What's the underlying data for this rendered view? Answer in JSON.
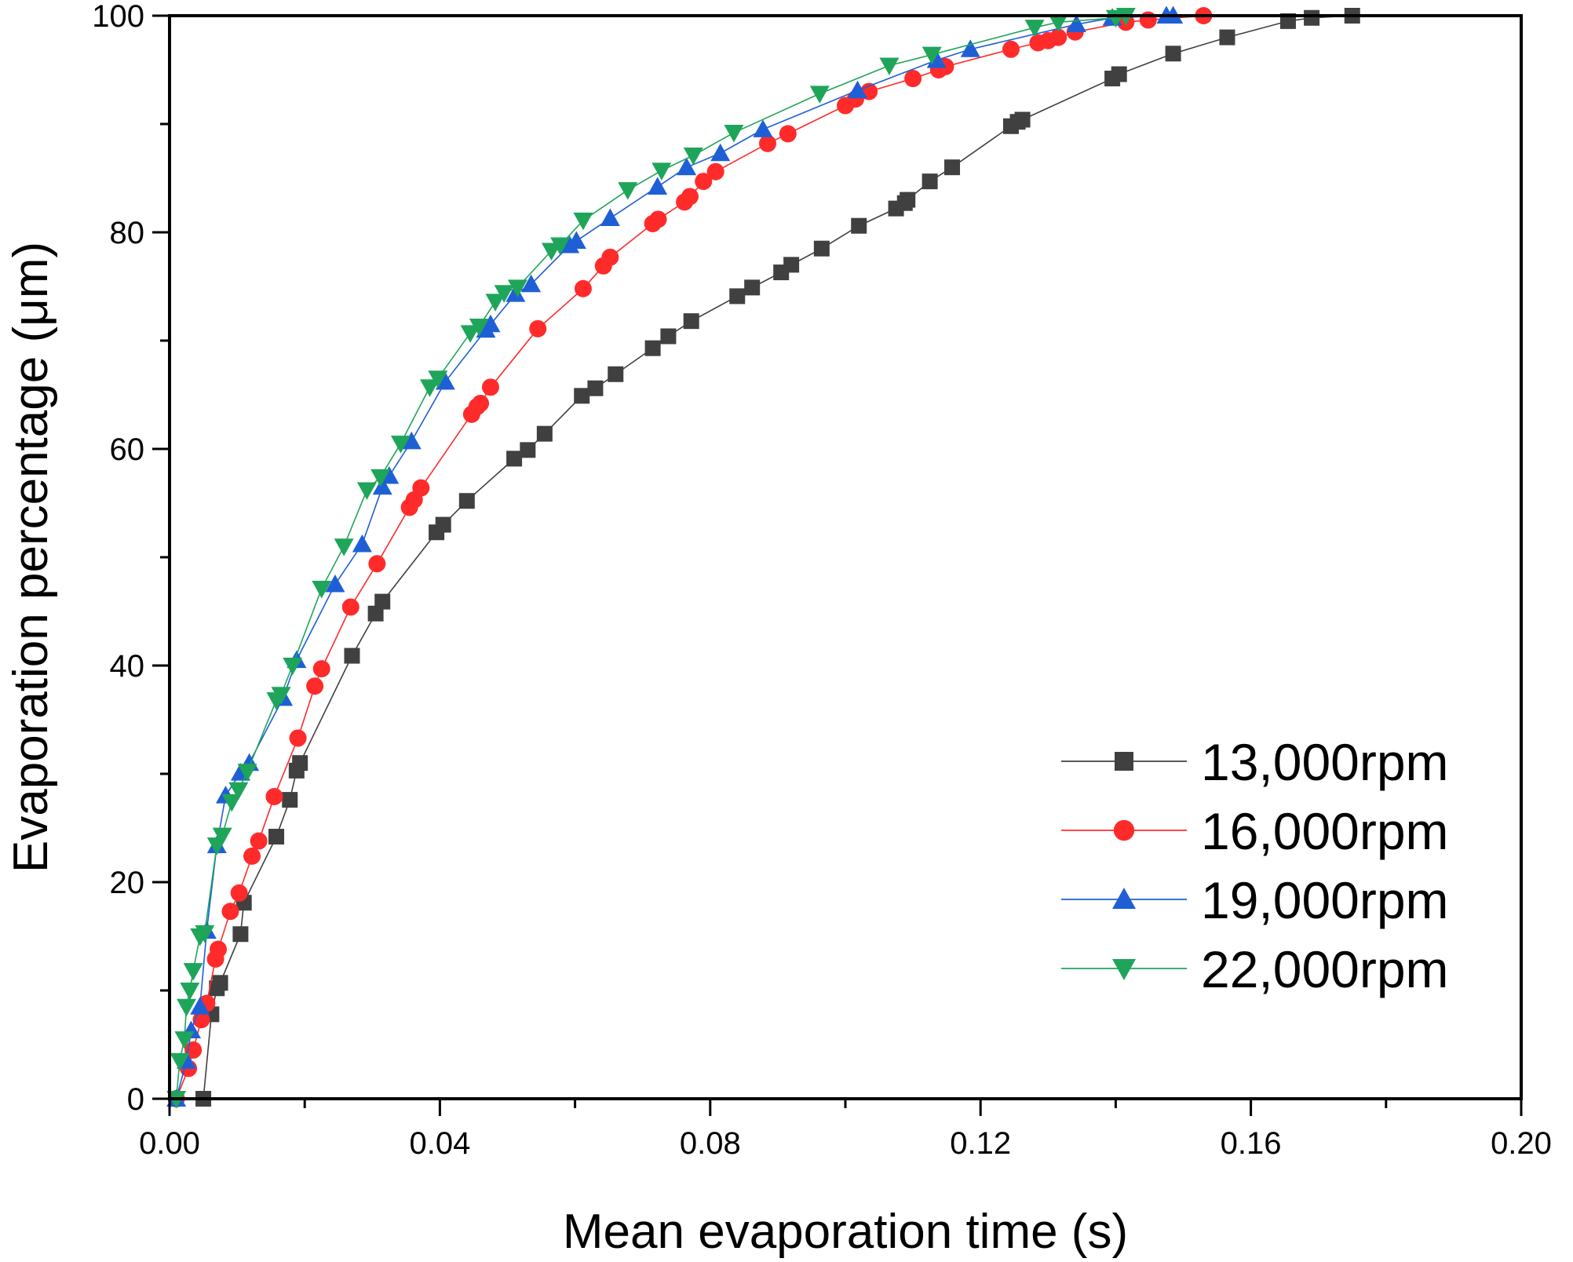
{
  "chart_data": {
    "type": "line",
    "xlabel": "Mean evaporation time (s)",
    "ylabel": "Evaporation percentage (μm)",
    "xlim": [
      0,
      0.2
    ],
    "ylim": [
      0,
      100
    ],
    "x_ticks": [
      0.0,
      0.04,
      0.08,
      0.12,
      0.16,
      0.2
    ],
    "x_tick_labels": [
      "0.00",
      "0.04",
      "0.08",
      "0.12",
      "0.16",
      "0.20"
    ],
    "y_ticks": [
      0,
      20,
      40,
      60,
      80,
      100
    ],
    "y_tick_labels": [
      "0",
      "20",
      "40",
      "60",
      "80",
      "100"
    ],
    "grid": false,
    "legend_position": "bottom-right",
    "series": [
      {
        "name": "13,000rpm",
        "color": "#404040",
        "marker": "square",
        "x": [
          0.005,
          0.0062,
          0.007,
          0.0075,
          0.0105,
          0.011,
          0.0158,
          0.0178,
          0.0188,
          0.0193,
          0.027,
          0.0305,
          0.0315,
          0.0395,
          0.0405,
          0.044,
          0.051,
          0.053,
          0.0555,
          0.061,
          0.063,
          0.066,
          0.0715,
          0.0738,
          0.0772,
          0.084,
          0.0862,
          0.0905,
          0.092,
          0.0965,
          0.102,
          0.1075,
          0.1088,
          0.1092,
          0.1125,
          0.1158,
          0.1245,
          0.1255,
          0.1262,
          0.1395,
          0.1405,
          0.1485,
          0.1565,
          0.1655,
          0.169,
          0.175
        ],
        "y": [
          0,
          7.8,
          10.2,
          10.7,
          15.2,
          18.1,
          24.2,
          27.6,
          30.3,
          31.0,
          40.9,
          44.8,
          45.9,
          52.3,
          53.0,
          55.2,
          59.1,
          59.9,
          61.4,
          64.9,
          65.6,
          66.9,
          69.3,
          70.4,
          71.8,
          74.1,
          74.9,
          76.3,
          77.0,
          78.5,
          80.6,
          82.2,
          82.7,
          83.0,
          84.7,
          86.0,
          89.8,
          90.2,
          90.4,
          94.2,
          94.6,
          96.5,
          98.0,
          99.5,
          99.8,
          100
        ]
      },
      {
        "name": "16,000rpm",
        "color": "#ff2b2b",
        "marker": "circle",
        "x": [
          0.001,
          0.0028,
          0.0035,
          0.0047,
          0.0055,
          0.0068,
          0.0072,
          0.009,
          0.0103,
          0.0122,
          0.0132,
          0.0155,
          0.019,
          0.0215,
          0.0225,
          0.0268,
          0.0307,
          0.0355,
          0.0362,
          0.0372,
          0.0447,
          0.0455,
          0.046,
          0.0475,
          0.0545,
          0.0612,
          0.0642,
          0.0652,
          0.0715,
          0.0723,
          0.0762,
          0.077,
          0.079,
          0.0808,
          0.0885,
          0.0915,
          0.1,
          0.1015,
          0.1035,
          0.11,
          0.1138,
          0.1148,
          0.1245,
          0.1285,
          0.13,
          0.1315,
          0.134,
          0.1415,
          0.1448,
          0.153
        ],
        "y": [
          0,
          2.8,
          4.5,
          7.3,
          8.8,
          12.9,
          13.8,
          17.3,
          19.0,
          22.4,
          23.8,
          27.9,
          33.3,
          38.1,
          39.7,
          45.4,
          49.4,
          54.6,
          55.3,
          56.4,
          63.2,
          63.9,
          64.2,
          65.7,
          71.1,
          74.8,
          76.9,
          77.7,
          80.8,
          81.2,
          82.8,
          83.3,
          84.7,
          85.6,
          88.2,
          89.1,
          91.7,
          92.3,
          93.0,
          94.2,
          95.0,
          95.3,
          96.9,
          97.5,
          97.7,
          98.0,
          98.5,
          99.4,
          99.6,
          100
        ]
      },
      {
        "name": "19,000rpm",
        "color": "#1f5fd6",
        "marker": "triangle-up",
        "x": [
          0.001,
          0.0025,
          0.0032,
          0.0045,
          0.0055,
          0.007,
          0.0083,
          0.0105,
          0.0118,
          0.0168,
          0.0188,
          0.0245,
          0.0285,
          0.0315,
          0.0325,
          0.0358,
          0.0408,
          0.0468,
          0.0475,
          0.0512,
          0.0535,
          0.0592,
          0.0602,
          0.0652,
          0.0722,
          0.0765,
          0.0815,
          0.0878,
          0.1018,
          0.1135,
          0.1185,
          0.1342,
          0.1395,
          0.1475,
          0.1485
        ],
        "y": [
          0,
          3.5,
          6.3,
          8.5,
          15.5,
          23.4,
          28.0,
          30.1,
          31.0,
          37.0,
          40.5,
          47.5,
          51.2,
          56.5,
          57.5,
          60.7,
          66.2,
          71.0,
          71.5,
          74.3,
          75.2,
          78.8,
          79.2,
          81.3,
          84.2,
          86.0,
          87.3,
          89.5,
          93.1,
          95.9,
          96.9,
          99.2,
          99.8,
          100,
          100
        ]
      },
      {
        "name": "22,000rpm",
        "color": "#1fa55a",
        "marker": "triangle-down",
        "x": [
          0.001,
          0.0015,
          0.0022,
          0.0025,
          0.003,
          0.0035,
          0.0045,
          0.0052,
          0.007,
          0.0078,
          0.0092,
          0.0102,
          0.0115,
          0.0158,
          0.0165,
          0.0182,
          0.0225,
          0.0258,
          0.0292,
          0.0312,
          0.0342,
          0.0385,
          0.0397,
          0.0445,
          0.0458,
          0.0482,
          0.0495,
          0.0515,
          0.0565,
          0.0578,
          0.0612,
          0.0678,
          0.0728,
          0.0775,
          0.0835,
          0.0962,
          0.1065,
          0.1128,
          0.128,
          0.1315,
          0.14,
          0.1415
        ],
        "y": [
          0,
          3.5,
          5.5,
          8.5,
          10.0,
          11.8,
          15.0,
          15.3,
          23.4,
          24.3,
          27.4,
          28.5,
          30.2,
          36.8,
          37.3,
          40.0,
          47.1,
          51.0,
          56.2,
          57.4,
          60.5,
          65.7,
          66.5,
          70.7,
          71.3,
          73.6,
          74.4,
          74.9,
          78.3,
          78.8,
          81.1,
          83.9,
          85.7,
          87.1,
          89.2,
          92.8,
          95.4,
          96.4,
          98.9,
          99.4,
          99.8,
          100
        ]
      }
    ]
  }
}
